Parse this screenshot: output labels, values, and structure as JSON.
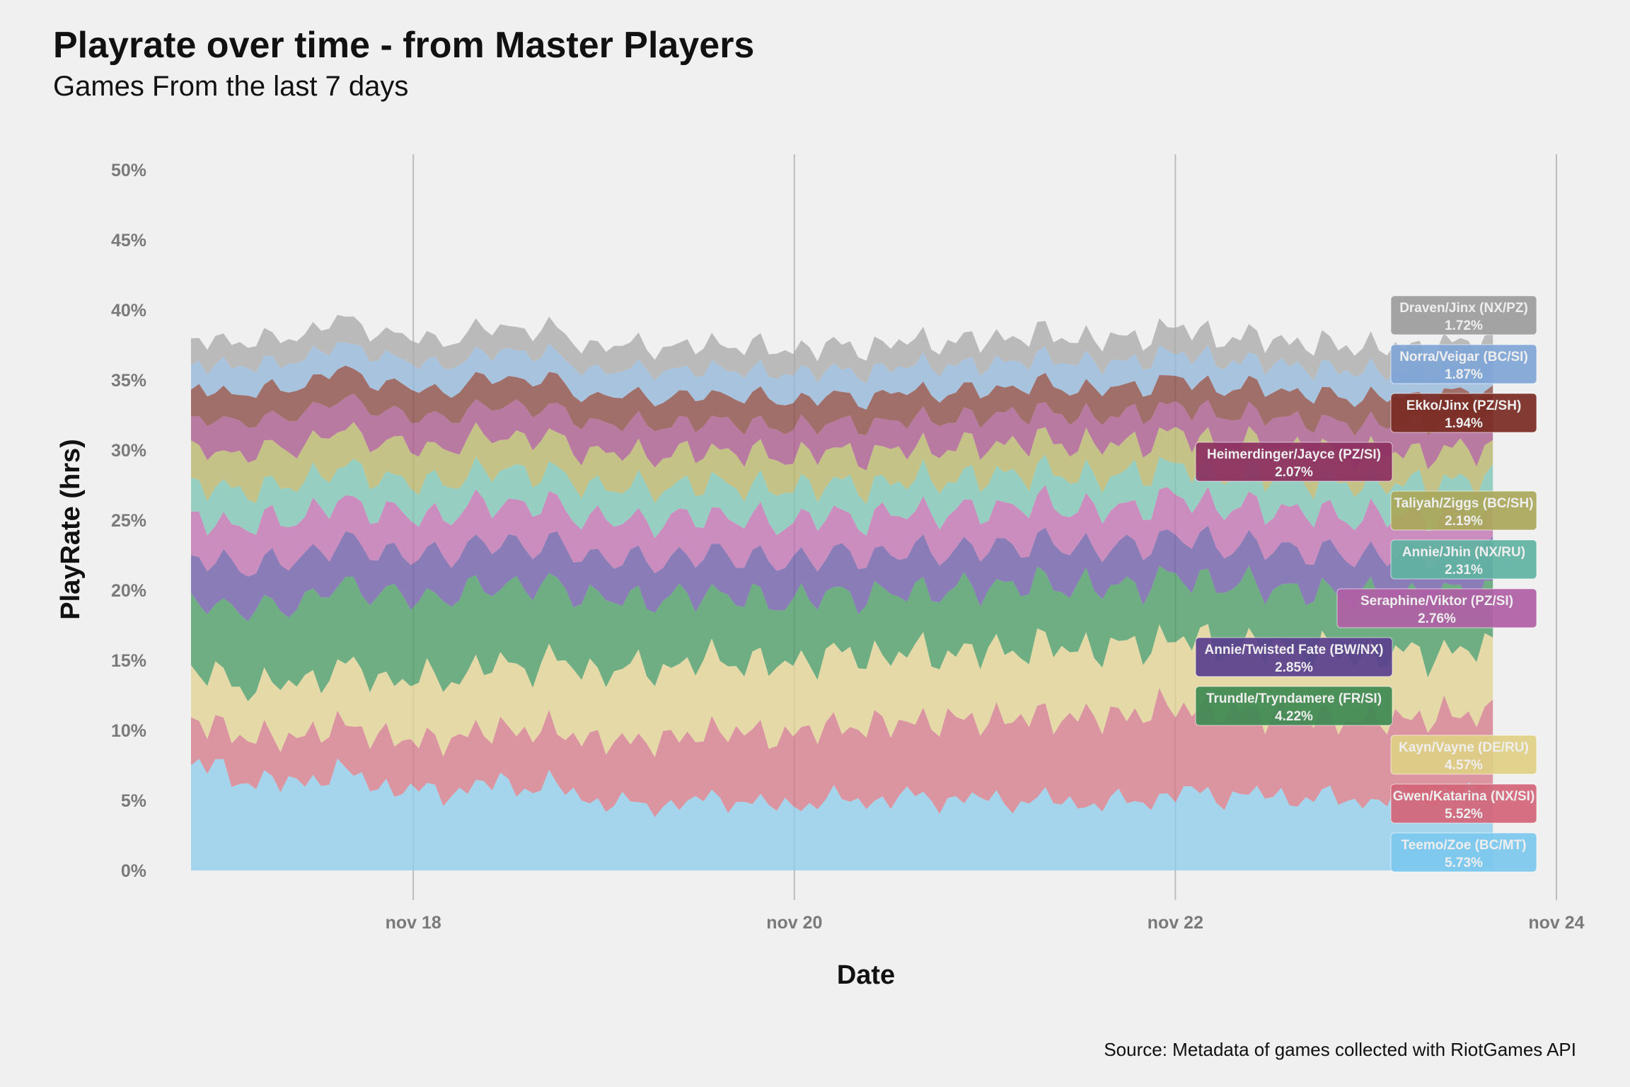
{
  "header": {
    "title": "Playrate over time - from Master Players",
    "subtitle": "Games From the last 7 days"
  },
  "caption": "Source: Metadata of games collected with RiotGames API",
  "chart_data": {
    "type": "area",
    "stacked": true,
    "xlabel": "Date",
    "ylabel": "PlayRate (hrs)",
    "ylim": [
      0,
      0.5
    ],
    "yticks": [
      "0%",
      "5%",
      "10%",
      "15%",
      "20%",
      "25%",
      "30%",
      "35%",
      "40%",
      "45%",
      "50%"
    ],
    "xlim": [
      "2023-11-16T20:00",
      "2023-11-24T00:00"
    ],
    "xticks": [
      "nov 18",
      "nov 20",
      "nov 22",
      "nov 24"
    ],
    "xtick_dates": [
      "2023-11-18",
      "2023-11-20",
      "2023-11-22",
      "2023-11-24"
    ],
    "x_range": [
      "2023-11-16T20:00",
      "2023-11-23T16:00"
    ],
    "grid": "vertical",
    "legend": "inline labels at right end",
    "series": [
      {
        "name": "Teemo/Zoe (BC/MT)",
        "color": "#8ecdea",
        "label_color": "#7cc8ee",
        "final": "5.73%",
        "anchors": [
          7.5,
          6.8,
          6.0,
          7.0,
          6.4,
          5.5,
          5.8,
          6.2,
          6.0,
          5.0,
          4.6,
          4.8,
          5.2,
          4.5,
          5.0,
          5.0,
          5.2,
          5.1,
          5.0,
          5.0,
          4.8,
          4.9,
          5.5,
          5.4,
          5.3,
          5.2,
          5.0,
          5.2,
          5.5,
          5.7
        ]
      },
      {
        "name": "Gwen/Katarina (NX/SI)",
        "color": "#d47b89",
        "label_color": "#d46477",
        "final": "5.52%",
        "anchors": [
          3.0,
          3.1,
          3.2,
          3.3,
          3.5,
          3.6,
          3.8,
          3.9,
          4.0,
          4.3,
          4.6,
          4.7,
          4.9,
          5.0,
          5.2,
          5.3,
          5.4,
          5.6,
          5.8,
          6.0,
          6.1,
          6.3,
          6.2,
          6.0,
          5.9,
          5.8,
          5.7,
          5.6,
          5.6,
          5.5
        ]
      },
      {
        "name": "Kayn/Vayne (DE/RU)",
        "color": "#e1d293",
        "label_color": "#e0cf86",
        "final": "4.57%",
        "anchors": [
          3.5,
          3.6,
          3.8,
          4.0,
          4.2,
          4.3,
          4.4,
          4.6,
          4.8,
          5.0,
          5.1,
          5.2,
          5.1,
          5.0,
          5.1,
          5.0,
          4.9,
          4.8,
          4.9,
          5.0,
          4.9,
          4.8,
          4.9,
          4.7,
          4.8,
          4.6,
          4.7,
          4.6,
          4.5,
          4.6
        ]
      },
      {
        "name": "Trundle/Tryndamere (FR/SI)",
        "color": "#4a9a64",
        "label_color": "#3f8a52",
        "final": "4.22%",
        "anchors": [
          5.0,
          5.3,
          5.6,
          5.8,
          6.0,
          5.9,
          5.8,
          5.7,
          5.5,
          5.2,
          5.0,
          4.8,
          4.6,
          4.5,
          4.4,
          4.3,
          4.4,
          4.5,
          4.6,
          4.5,
          4.4,
          4.3,
          4.4,
          4.3,
          4.3,
          4.2,
          4.3,
          4.2,
          4.2,
          4.2
        ]
      },
      {
        "name": "Annie/Twisted Fate (BW/NX)",
        "color": "#6b5ba6",
        "label_color": "#5a3f8e",
        "final": "2.85%",
        "anchors": [
          3.0,
          3.1,
          3.2,
          3.1,
          3.0,
          3.0,
          3.1,
          3.0,
          2.9,
          2.9,
          2.8,
          2.8,
          2.9,
          2.9,
          2.8,
          2.8,
          2.9,
          2.8,
          2.8,
          2.9,
          2.8,
          2.8,
          2.9,
          2.8,
          2.8,
          2.9,
          2.8,
          2.9,
          2.8,
          2.85
        ]
      },
      {
        "name": "Seraphine/Viktor (PZ/SI)",
        "color": "#c070b0",
        "label_color": "#b05ea5",
        "final": "2.76%",
        "anchors": [
          2.8,
          2.9,
          3.0,
          2.9,
          2.9,
          2.8,
          2.8,
          2.9,
          2.8,
          2.7,
          2.8,
          2.8,
          2.7,
          2.8,
          2.8,
          2.7,
          2.8,
          2.7,
          2.8,
          2.8,
          2.7,
          2.8,
          2.8,
          2.7,
          2.8,
          2.8,
          2.7,
          2.8,
          2.8,
          2.76
        ]
      },
      {
        "name": "Annie/Jhin (NX/RU)",
        "color": "#7cc5b3",
        "label_color": "#5fb3a2",
        "final": "2.31%",
        "anchors": [
          2.4,
          2.5,
          2.4,
          2.5,
          2.4,
          2.4,
          2.3,
          2.4,
          2.3,
          2.3,
          2.4,
          2.3,
          2.3,
          2.4,
          2.3,
          2.3,
          2.3,
          2.4,
          2.3,
          2.3,
          2.3,
          2.4,
          2.3,
          2.3,
          2.3,
          2.3,
          2.4,
          2.3,
          2.3,
          2.31
        ]
      },
      {
        "name": "Taliyah/Ziggs (BC/SH)",
        "color": "#b8b56a",
        "label_color": "#aaa85a",
        "final": "2.19%",
        "anchors": [
          2.5,
          2.6,
          2.7,
          2.6,
          2.6,
          2.5,
          2.5,
          2.4,
          2.5,
          2.4,
          2.4,
          2.3,
          2.4,
          2.3,
          2.3,
          2.3,
          2.2,
          2.3,
          2.2,
          2.2,
          2.3,
          2.2,
          2.2,
          2.2,
          2.2,
          2.2,
          2.2,
          2.2,
          2.2,
          2.19
        ]
      },
      {
        "name": "Heimerdinger/Jayce (PZ/SI)",
        "color": "#a9588a",
        "label_color": "#8c2f60",
        "final": "2.07%",
        "anchors": [
          2.2,
          2.3,
          2.2,
          2.3,
          2.2,
          2.2,
          2.1,
          2.2,
          2.1,
          2.1,
          2.2,
          2.1,
          2.1,
          2.1,
          2.0,
          2.1,
          2.1,
          2.0,
          2.1,
          2.1,
          2.0,
          2.1,
          2.0,
          2.1,
          2.1,
          2.0,
          2.1,
          2.0,
          2.1,
          2.07
        ]
      },
      {
        "name": "Ekko/Jinx (PZ/SH)",
        "color": "#8a4a42",
        "label_color": "#7a2a22",
        "final": "1.94%",
        "anchors": [
          2.0,
          2.1,
          2.0,
          2.1,
          2.0,
          2.0,
          1.9,
          2.0,
          2.0,
          1.9,
          2.0,
          1.9,
          1.9,
          2.0,
          1.9,
          1.9,
          2.0,
          1.9,
          1.9,
          1.9,
          2.0,
          1.9,
          1.9,
          1.9,
          2.0,
          1.9,
          1.9,
          1.9,
          2.0,
          1.94
        ]
      },
      {
        "name": "Norra/Veigar (BC/SI)",
        "color": "#94b6d8",
        "label_color": "#7fa5d6",
        "final": "1.87%",
        "anchors": [
          1.8,
          1.9,
          1.9,
          1.8,
          1.9,
          1.9,
          1.8,
          1.9,
          1.9,
          1.8,
          1.9,
          1.9,
          1.8,
          1.9,
          1.9,
          1.8,
          1.9,
          1.9,
          1.8,
          1.9,
          1.9,
          1.8,
          1.9,
          1.9,
          1.8,
          1.9,
          1.9,
          1.8,
          1.9,
          1.87
        ]
      },
      {
        "name": "Draven/Jinx (NX/PZ)",
        "color": "#ababab",
        "label_color": "#9c9c9c",
        "final": "1.72%",
        "anchors": [
          1.7,
          1.8,
          1.7,
          1.8,
          1.7,
          1.7,
          1.8,
          1.7,
          1.7,
          1.8,
          1.7,
          1.7,
          1.8,
          1.7,
          1.7,
          1.8,
          1.7,
          1.7,
          1.8,
          1.7,
          1.7,
          1.7,
          1.8,
          1.7,
          1.7,
          1.7,
          1.8,
          1.7,
          1.7,
          1.72
        ]
      }
    ]
  }
}
